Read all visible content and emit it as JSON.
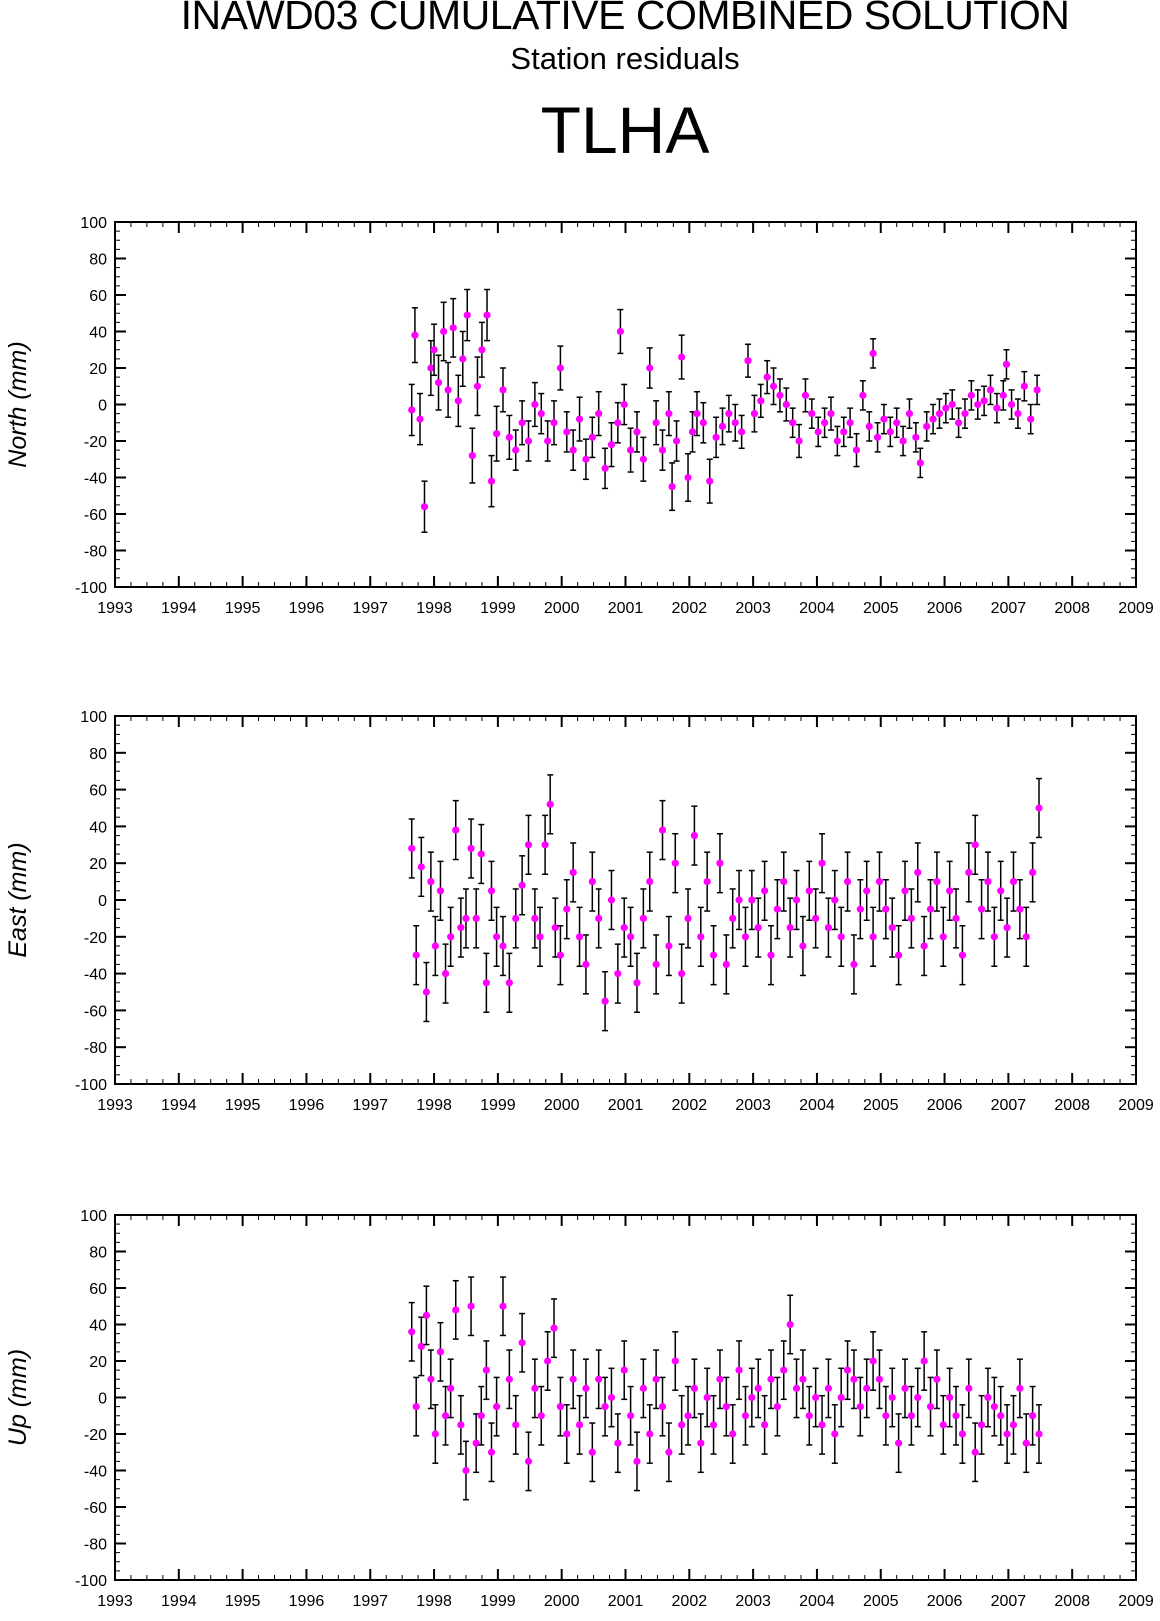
{
  "page": {
    "title": "INAWD03 CUMULATIVE COMBINED SOLUTION",
    "subtitle": "Station residuals",
    "station": "TLHA"
  },
  "chart_data": [
    {
      "type": "scatter",
      "ylabel": "North (mm)",
      "xlim": [
        1993,
        2009
      ],
      "ylim": [
        -100,
        100
      ],
      "x_ticks": [
        "1993",
        "1994",
        "1995",
        "1996",
        "1997",
        "1998",
        "1999",
        "2000",
        "2001",
        "2002",
        "2003",
        "2004",
        "2005",
        "2006",
        "2007",
        "2008",
        "2009"
      ],
      "y_ticks": [
        "100",
        "80",
        "60",
        "40",
        "20",
        "0",
        "-20",
        "-40",
        "-60",
        "-80",
        "-100"
      ],
      "grid": false,
      "marker_color": "#ff00ff",
      "errorbar_color": "#000000",
      "x": [
        1997.65,
        1997.7,
        1997.78,
        1997.85,
        1997.95,
        1998.0,
        1998.07,
        1998.15,
        1998.22,
        1998.3,
        1998.38,
        1998.45,
        1998.52,
        1998.6,
        1998.68,
        1998.75,
        1998.83,
        1998.9,
        1998.98,
        1999.08,
        1999.18,
        1999.28,
        1999.38,
        1999.48,
        1999.58,
        1999.68,
        1999.78,
        1999.88,
        1999.98,
        2000.08,
        2000.18,
        2000.28,
        2000.38,
        2000.48,
        2000.58,
        2000.68,
        2000.78,
        2000.88,
        2000.92,
        2000.98,
        2001.08,
        2001.18,
        2001.28,
        2001.38,
        2001.48,
        2001.58,
        2001.68,
        2001.73,
        2001.8,
        2001.88,
        2001.98,
        2002.05,
        2002.12,
        2002.22,
        2002.32,
        2002.42,
        2002.52,
        2002.62,
        2002.72,
        2002.82,
        2002.92,
        2003.02,
        2003.12,
        2003.22,
        2003.32,
        2003.42,
        2003.52,
        2003.62,
        2003.72,
        2003.82,
        2003.92,
        2004.02,
        2004.12,
        2004.22,
        2004.32,
        2004.42,
        2004.52,
        2004.62,
        2004.72,
        2004.82,
        2004.88,
        2004.95,
        2005.05,
        2005.15,
        2005.25,
        2005.35,
        2005.45,
        2005.55,
        2005.62,
        2005.72,
        2005.82,
        2005.92,
        2006.02,
        2006.12,
        2006.22,
        2006.32,
        2006.42,
        2006.52,
        2006.62,
        2006.72,
        2006.82,
        2006.92,
        2006.97,
        2007.05,
        2007.15,
        2007.25,
        2007.35,
        2007.45
      ],
      "y": [
        -3,
        38,
        -8,
        -56,
        20,
        30,
        12,
        40,
        8,
        42,
        2,
        25,
        49,
        -28,
        10,
        30,
        49,
        -42,
        -16,
        8,
        -18,
        -25,
        -10,
        -20,
        0,
        -5,
        -20,
        -10,
        20,
        -15,
        -25,
        -8,
        -30,
        -18,
        -5,
        -35,
        -22,
        -10,
        40,
        0,
        -25,
        -15,
        -30,
        20,
        -10,
        -25,
        -5,
        -45,
        -20,
        26,
        -40,
        -15,
        -5,
        -10,
        -42,
        -18,
        -12,
        -5,
        -10,
        -15,
        24,
        -5,
        2,
        15,
        10,
        5,
        0,
        -10,
        -20,
        5,
        -5,
        -15,
        -10,
        -5,
        -20,
        -15,
        -10,
        -25,
        5,
        -12,
        28,
        -18,
        -8,
        -15,
        -10,
        -20,
        -5,
        -18,
        -32,
        -12,
        -8,
        -5,
        -2,
        0,
        -10,
        -5,
        5,
        0,
        2,
        8,
        -2,
        5,
        22,
        0,
        -5,
        10,
        -8,
        8
      ],
      "err": [
        14,
        15,
        14,
        14,
        15,
        14,
        15,
        16,
        15,
        16,
        14,
        15,
        14,
        15,
        16,
        15,
        14,
        14,
        15,
        12,
        12,
        11,
        12,
        11,
        12,
        11,
        11,
        12,
        12,
        11,
        11,
        12,
        11,
        11,
        12,
        11,
        12,
        11,
        12,
        11,
        12,
        11,
        12,
        11,
        12,
        11,
        12,
        13,
        11,
        12,
        13,
        11,
        12,
        11,
        12,
        11,
        10,
        10,
        10,
        9,
        9,
        10,
        9,
        9,
        10,
        9,
        9,
        8,
        9,
        9,
        8,
        8,
        8,
        9,
        8,
        8,
        8,
        9,
        8,
        8,
        8,
        8,
        8,
        8,
        8,
        8,
        8,
        8,
        8,
        8,
        8,
        8,
        8,
        8,
        8,
        8,
        8,
        8,
        8,
        8,
        8,
        8,
        8,
        8,
        8,
        8,
        8,
        8
      ]
    },
    {
      "type": "scatter",
      "ylabel": "East (mm)",
      "xlim": [
        1993,
        2009
      ],
      "ylim": [
        -100,
        100
      ],
      "x_ticks": [
        "1993",
        "1994",
        "1995",
        "1996",
        "1997",
        "1998",
        "1999",
        "2000",
        "2001",
        "2002",
        "2003",
        "2004",
        "2005",
        "2006",
        "2007",
        "2008",
        "2009"
      ],
      "y_ticks": [
        "100",
        "80",
        "60",
        "40",
        "20",
        "0",
        "-20",
        "-40",
        "-60",
        "-80",
        "-100"
      ],
      "grid": false,
      "marker_color": "#ff00ff",
      "errorbar_color": "#000000",
      "x": [
        1997.65,
        1997.72,
        1997.8,
        1997.88,
        1997.95,
        1998.02,
        1998.1,
        1998.18,
        1998.26,
        1998.34,
        1998.42,
        1998.5,
        1998.58,
        1998.66,
        1998.74,
        1998.82,
        1998.9,
        1998.98,
        1999.08,
        1999.18,
        1999.28,
        1999.38,
        1999.48,
        1999.58,
        1999.66,
        1999.74,
        1999.82,
        1999.9,
        1999.98,
        2000.08,
        2000.18,
        2000.28,
        2000.38,
        2000.48,
        2000.58,
        2000.68,
        2000.78,
        2000.88,
        2000.98,
        2001.08,
        2001.18,
        2001.28,
        2001.38,
        2001.48,
        2001.58,
        2001.68,
        2001.78,
        2001.88,
        2001.98,
        2002.08,
        2002.18,
        2002.28,
        2002.38,
        2002.48,
        2002.58,
        2002.68,
        2002.78,
        2002.88,
        2002.98,
        2003.08,
        2003.18,
        2003.28,
        2003.38,
        2003.48,
        2003.58,
        2003.68,
        2003.78,
        2003.88,
        2003.98,
        2004.08,
        2004.18,
        2004.28,
        2004.38,
        2004.48,
        2004.58,
        2004.68,
        2004.78,
        2004.88,
        2004.98,
        2005.08,
        2005.18,
        2005.28,
        2005.38,
        2005.48,
        2005.58,
        2005.68,
        2005.78,
        2005.88,
        2005.98,
        2006.08,
        2006.18,
        2006.28,
        2006.38,
        2006.48,
        2006.58,
        2006.68,
        2006.78,
        2006.88,
        2006.98,
        2007.08,
        2007.18,
        2007.28,
        2007.38,
        2007.48
      ],
      "y": [
        28,
        -30,
        18,
        -50,
        10,
        -25,
        5,
        -40,
        -20,
        38,
        -15,
        -10,
        28,
        -10,
        25,
        -45,
        5,
        -20,
        -25,
        -45,
        -10,
        8,
        30,
        -10,
        -20,
        30,
        52,
        -15,
        -30,
        -5,
        15,
        -20,
        -35,
        10,
        -10,
        -55,
        0,
        -40,
        -15,
        -20,
        -45,
        -10,
        10,
        -35,
        38,
        -25,
        20,
        -40,
        -10,
        35,
        -20,
        10,
        -30,
        20,
        -35,
        -10,
        0,
        -20,
        0,
        -15,
        5,
        -30,
        -5,
        10,
        -15,
        0,
        -25,
        5,
        -10,
        20,
        -15,
        0,
        -20,
        10,
        -35,
        -5,
        5,
        -20,
        10,
        -5,
        -15,
        -30,
        5,
        -10,
        15,
        -25,
        -5,
        10,
        -20,
        5,
        -10,
        -30,
        15,
        30,
        -5,
        10,
        -20,
        5,
        -15,
        10,
        -5,
        -20,
        15,
        50
      ]
    },
    {
      "type": "scatter",
      "ylabel": "Up (mm)",
      "xlim": [
        1993,
        2009
      ],
      "ylim": [
        -100,
        100
      ],
      "x_ticks": [
        "1993",
        "1994",
        "1995",
        "1996",
        "1997",
        "1998",
        "1999",
        "2000",
        "2001",
        "2002",
        "2003",
        "2004",
        "2005",
        "2006",
        "2007",
        "2008",
        "2009"
      ],
      "y_ticks": [
        "100",
        "80",
        "60",
        "40",
        "20",
        "0",
        "-20",
        "-40",
        "-60",
        "-80",
        "-100"
      ],
      "grid": false,
      "marker_color": "#ff00ff",
      "errorbar_color": "#000000",
      "x": [
        1997.65,
        1997.72,
        1997.8,
        1997.88,
        1997.95,
        1998.02,
        1998.1,
        1998.18,
        1998.26,
        1998.34,
        1998.42,
        1998.5,
        1998.58,
        1998.66,
        1998.74,
        1998.82,
        1998.9,
        1998.98,
        1999.08,
        1999.18,
        1999.28,
        1999.38,
        1999.48,
        1999.58,
        1999.68,
        1999.78,
        1999.88,
        1999.98,
        2000.08,
        2000.18,
        2000.28,
        2000.38,
        2000.48,
        2000.58,
        2000.68,
        2000.78,
        2000.88,
        2000.98,
        2001.08,
        2001.18,
        2001.28,
        2001.38,
        2001.48,
        2001.58,
        2001.68,
        2001.78,
        2001.88,
        2001.98,
        2002.08,
        2002.18,
        2002.28,
        2002.38,
        2002.48,
        2002.58,
        2002.68,
        2002.78,
        2002.88,
        2002.98,
        2003.08,
        2003.18,
        2003.28,
        2003.38,
        2003.48,
        2003.58,
        2003.68,
        2003.78,
        2003.88,
        2003.98,
        2004.08,
        2004.18,
        2004.28,
        2004.38,
        2004.48,
        2004.58,
        2004.68,
        2004.78,
        2004.88,
        2004.98,
        2005.08,
        2005.18,
        2005.28,
        2005.38,
        2005.48,
        2005.58,
        2005.68,
        2005.78,
        2005.88,
        2005.98,
        2006.08,
        2006.18,
        2006.28,
        2006.38,
        2006.48,
        2006.58,
        2006.68,
        2006.78,
        2006.88,
        2006.98,
        2007.08,
        2007.18,
        2007.28,
        2007.38,
        2007.48
      ],
      "y": [
        36,
        -5,
        28,
        45,
        10,
        -20,
        25,
        -10,
        5,
        48,
        -15,
        -40,
        50,
        -25,
        -10,
        15,
        -30,
        -5,
        50,
        10,
        -15,
        30,
        -35,
        5,
        -10,
        20,
        38,
        -5,
        -20,
        10,
        -15,
        5,
        -30,
        10,
        -5,
        0,
        -25,
        15,
        -10,
        -35,
        5,
        -20,
        10,
        -5,
        -30,
        20,
        -15,
        -10,
        5,
        -25,
        0,
        -15,
        10,
        -5,
        -20,
        15,
        -10,
        0,
        5,
        -15,
        10,
        -5,
        15,
        40,
        5,
        10,
        -10,
        0,
        -15,
        5,
        -20,
        0,
        15,
        10,
        -5,
        5,
        20,
        10,
        -10,
        0,
        -25,
        5,
        -10,
        0,
        20,
        -5,
        10,
        -15,
        0,
        -10,
        -20,
        5,
        -30,
        -15,
        0,
        -5,
        -10,
        -20,
        -15,
        5,
        -25,
        -10,
        -20
      ]
    }
  ]
}
